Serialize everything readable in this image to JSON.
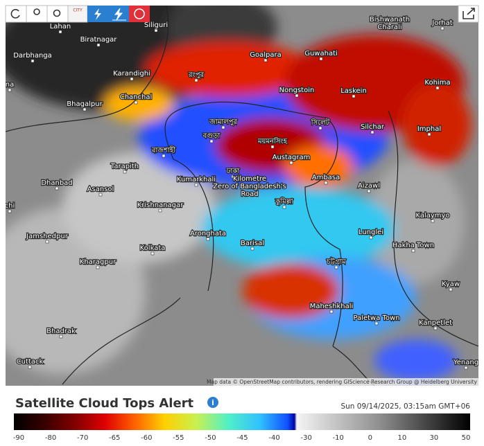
{
  "toolbar": {
    "city_button": "CITY"
  },
  "map": {
    "places": [
      [
        "Lahan"
      ],
      [
        "Siliguri"
      ],
      [
        "Bishwanath",
        "Charali"
      ],
      [
        "Jorhat"
      ],
      [
        "Biratnagar"
      ],
      [
        "Darbhanga"
      ],
      [
        "Goalpara"
      ],
      [
        "Guwahati"
      ],
      [
        "Karandighi"
      ],
      [
        "রংপুর"
      ],
      [
        "na"
      ],
      [
        "Nongstoin"
      ],
      [
        "Laskein"
      ],
      [
        "Kohima"
      ],
      [
        "Bhagalpur"
      ],
      [
        "Chanchal"
      ],
      [
        "জামালপুর"
      ],
      [
        "সিলেট"
      ],
      [
        "Silchar"
      ],
      [
        "Imphal"
      ],
      [
        "বগুড়া"
      ],
      [
        "ময়মনসিংহ"
      ],
      [
        "রাজশাহী"
      ],
      [
        "Austagram"
      ],
      [
        "Tarapith"
      ],
      [
        "ঢাকা",
        "Kilometre",
        "Zero of Bangladesh's",
        "Road"
      ],
      [
        "Kumarkhali"
      ],
      [
        "Ambasa"
      ],
      [
        "Aizawl"
      ],
      [
        "Dhanbad"
      ],
      [
        "Asansol"
      ],
      [
        "কুমিল্লা"
      ],
      [
        "Krishnanagar"
      ],
      [
        "chi"
      ],
      [
        "Kalaymyo"
      ],
      [
        "Aronghata"
      ],
      [
        "Jamshedpur"
      ],
      [
        "Lunglei"
      ],
      [
        "Barisal"
      ],
      [
        "Hakha Town"
      ],
      [
        "Kolkata"
      ],
      [
        "চট্টগ্রাম"
      ],
      [
        "Kharagpur"
      ],
      [
        "Kyaw"
      ],
      [
        "Maheshkhali"
      ],
      [
        "Paletwa Town"
      ],
      [
        "Kanpetlet"
      ],
      [
        "Bhadrak"
      ],
      [
        "Cuttack"
      ],
      [
        "Yenang"
      ]
    ],
    "attribution": "Map data © OpenStreetMap contributors, rendering GIScience Research Group @ Heidelberg University"
  },
  "legend": {
    "title": "Satellite Cloud Tops Alert",
    "timestamp": "Sun 09/14/2025, 03:15am GMT+06",
    "ticks": [
      -90,
      -80,
      -70,
      -65,
      -60,
      -55,
      -50,
      -45,
      -40,
      -30,
      -10,
      0,
      10,
      30,
      50
    ]
  }
}
